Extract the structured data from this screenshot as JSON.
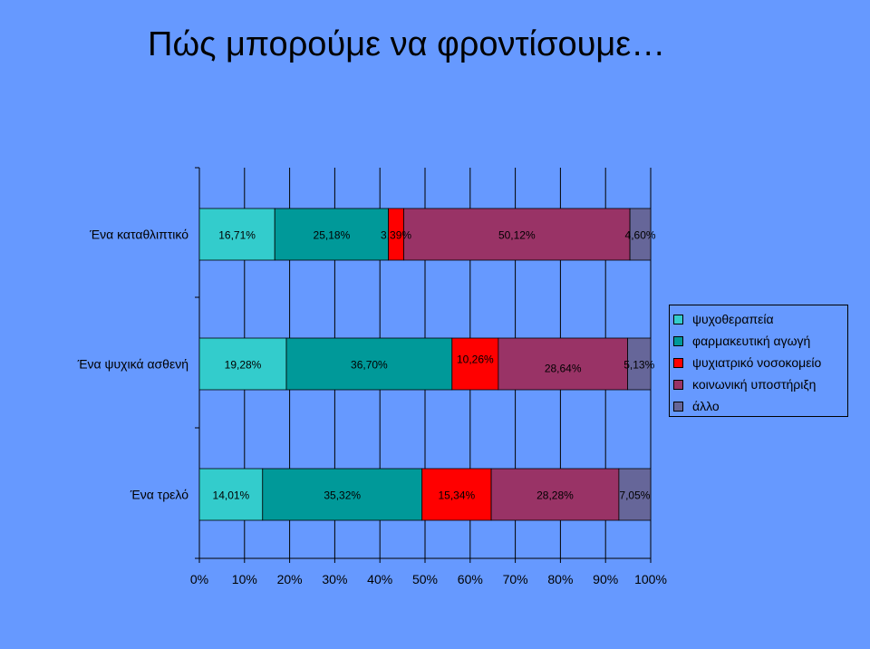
{
  "title": "Πώς μπορούμε να φροντίσουμε…",
  "colors": {
    "background": "#6699FF",
    "series": [
      "#33CCCC",
      "#009999",
      "#FF0000",
      "#993366",
      "#666699"
    ]
  },
  "chart_data": {
    "type": "bar",
    "orientation": "horizontal",
    "stacked": "percent",
    "categories": [
      "Ένα καταθλιπτικό",
      "Ένα ψυχικά ασθενή",
      "Ένα τρελό"
    ],
    "series": [
      {
        "name": "ψυχοθεραπεία",
        "values": [
          16.71,
          19.28,
          14.01
        ],
        "labels": [
          "16,71%",
          "19,28%",
          "14,01%"
        ]
      },
      {
        "name": "φαρμακευτική αγωγή",
        "values": [
          25.18,
          36.7,
          35.32
        ],
        "labels": [
          "25,18%",
          "36,70%",
          "35,32%"
        ]
      },
      {
        "name": "ψυχιατρικό νοσοκομείο",
        "values": [
          3.39,
          10.26,
          15.34
        ],
        "labels": [
          "3,39%",
          "10,26%",
          "15,34%"
        ]
      },
      {
        "name": "κοινωνική υποστήριξη",
        "values": [
          50.12,
          28.64,
          28.28
        ],
        "labels": [
          "50,12%",
          "28,64%",
          "28,28%"
        ]
      },
      {
        "name": "άλλο",
        "values": [
          4.6,
          5.13,
          7.05
        ],
        "labels": [
          "4,60%",
          "5,13%",
          "7,05%"
        ]
      }
    ],
    "xlim": [
      0,
      100
    ],
    "xticks": [
      "0%",
      "10%",
      "20%",
      "30%",
      "40%",
      "50%",
      "60%",
      "70%",
      "80%",
      "90%",
      "100%"
    ],
    "grid": true,
    "legend_position": "right"
  }
}
